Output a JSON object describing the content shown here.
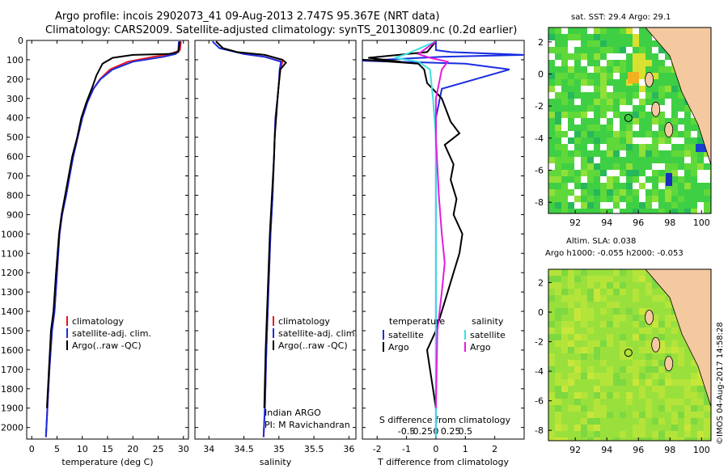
{
  "header": {
    "line1": "Argo profile: incois 2902073_41 09-Aug-2013 2.747S 95.367E (NRT data)",
    "line2": "Climatology: CARS2009. Satellite-adjusted climatology: synTS_20130809.nc (0.2d earlier)"
  },
  "credits": {
    "agency": "Indian ARGO",
    "pi": "PI: M Ravichandran",
    "stamp": "©IMOS 04-Aug-2017 14:58:28"
  },
  "colors": {
    "climatology": "#e8141e",
    "satellite": "#1a2de0",
    "argo": "#000000",
    "argo_salinity": "#e31ce0",
    "satellite_salinity": "#3ee0e0",
    "land": "#f5c9a0",
    "sst_map": "#33cc44",
    "sla_map": "#9ae03c"
  },
  "chart_data": [
    {
      "type": "line",
      "panel": "temperature",
      "xlabel": "temperature (deg C)",
      "xlim": [
        -1,
        31
      ],
      "xticks": [
        0,
        5,
        10,
        15,
        20,
        25,
        30
      ],
      "ylim": [
        2060,
        0
      ],
      "yticks": [
        0,
        100,
        200,
        300,
        400,
        500,
        600,
        700,
        800,
        900,
        1000,
        1100,
        1200,
        1300,
        1400,
        1500,
        1600,
        1700,
        1800,
        1900,
        2000
      ],
      "legend": [
        "climatology",
        "satellite-adj. clim.",
        "Argo(..raw -QC)"
      ],
      "series": [
        {
          "name": "climatology",
          "color_key": "climatology",
          "points": [
            [
              29.5,
              5
            ],
            [
              29.3,
              50
            ],
            [
              27.5,
              70
            ],
            [
              24,
              85
            ],
            [
              19,
              110
            ],
            [
              15.5,
              150
            ],
            [
              13.5,
              200
            ],
            [
              12.2,
              250
            ],
            [
              11,
              320
            ],
            [
              10,
              400
            ],
            [
              9.1,
              500
            ],
            [
              8.2,
              600
            ],
            [
              7.5,
              700
            ],
            [
              6.8,
              800
            ],
            [
              6,
              900
            ],
            [
              5.5,
              1000
            ],
            [
              5,
              1200
            ],
            [
              4.5,
              1400
            ],
            [
              4,
              1500
            ],
            [
              3.5,
              1700
            ],
            [
              3.1,
              1900
            ],
            [
              2.8,
              2050
            ]
          ]
        },
        {
          "name": "satellite-adj. clim.",
          "color_key": "satellite",
          "points": [
            [
              29.1,
              5
            ],
            [
              29,
              50
            ],
            [
              28.5,
              70
            ],
            [
              26,
              85
            ],
            [
              20,
              110
            ],
            [
              16,
              150
            ],
            [
              13.6,
              200
            ],
            [
              12.2,
              250
            ],
            [
              11,
              320
            ],
            [
              10,
              400
            ],
            [
              9.1,
              500
            ],
            [
              8.2,
              600
            ],
            [
              7.5,
              700
            ],
            [
              6.8,
              800
            ],
            [
              6,
              900
            ],
            [
              5.5,
              1000
            ],
            [
              5,
              1200
            ],
            [
              4.5,
              1400
            ],
            [
              4,
              1500
            ],
            [
              3.5,
              1700
            ],
            [
              3.1,
              1900
            ],
            [
              2.8,
              2050
            ]
          ]
        },
        {
          "name": "Argo(..raw -QC)",
          "color_key": "argo",
          "points": [
            [
              29.3,
              5
            ],
            [
              29,
              60
            ],
            [
              27,
              70
            ],
            [
              20,
              75
            ],
            [
              16,
              90
            ],
            [
              14,
              120
            ],
            [
              12.8,
              180
            ],
            [
              12,
              240
            ],
            [
              10.8,
              320
            ],
            [
              9.8,
              400
            ],
            [
              9,
              500
            ],
            [
              8,
              600
            ],
            [
              7.3,
              700
            ],
            [
              6.6,
              800
            ],
            [
              5.9,
              900
            ],
            [
              5.4,
              1000
            ],
            [
              4.8,
              1200
            ],
            [
              4.3,
              1400
            ],
            [
              3.8,
              1500
            ],
            [
              3.4,
              1700
            ],
            [
              3,
              1900
            ]
          ]
        }
      ]
    },
    {
      "type": "line",
      "panel": "salinity",
      "xlabel": "salinity",
      "xlim": [
        33.8,
        36.1
      ],
      "xticks": [
        34,
        34.5,
        35,
        35.5,
        36
      ],
      "ylim": [
        2060,
        0
      ],
      "legend": [
        "climatology",
        "satellite-adj. clim.",
        "Argo(..raw -QC)"
      ],
      "series": [
        {
          "name": "climatology",
          "color_key": "climatology",
          "points": [
            [
              34.1,
              5
            ],
            [
              34.2,
              40
            ],
            [
              34.5,
              70
            ],
            [
              34.8,
              85
            ],
            [
              35.05,
              110
            ],
            [
              35.02,
              150
            ],
            [
              35,
              220
            ],
            [
              34.98,
              300
            ],
            [
              34.95,
              400
            ],
            [
              34.93,
              600
            ],
            [
              34.91,
              800
            ],
            [
              34.88,
              1000
            ],
            [
              34.85,
              1300
            ],
            [
              34.82,
              1600
            ],
            [
              34.8,
              1900
            ],
            [
              34.78,
              2050
            ]
          ]
        },
        {
          "name": "satellite-adj. clim.",
          "color_key": "satellite",
          "points": [
            [
              34.05,
              5
            ],
            [
              34.15,
              40
            ],
            [
              34.5,
              70
            ],
            [
              34.8,
              85
            ],
            [
              35.03,
              110
            ],
            [
              35.01,
              150
            ],
            [
              35,
              220
            ],
            [
              34.98,
              300
            ],
            [
              34.95,
              400
            ],
            [
              34.93,
              600
            ],
            [
              34.91,
              800
            ],
            [
              34.88,
              1000
            ],
            [
              34.85,
              1300
            ],
            [
              34.82,
              1600
            ],
            [
              34.8,
              1900
            ],
            [
              34.78,
              2050
            ]
          ]
        },
        {
          "name": "Argo(..raw -QC)",
          "color_key": "argo",
          "points": [
            [
              34.1,
              5
            ],
            [
              34.2,
              40
            ],
            [
              34.4,
              60
            ],
            [
              34.8,
              75
            ],
            [
              35.05,
              100
            ],
            [
              35.1,
              115
            ],
            [
              35.02,
              150
            ],
            [
              35,
              220
            ],
            [
              34.98,
              300
            ],
            [
              34.96,
              400
            ],
            [
              34.94,
              500
            ],
            [
              34.93,
              600
            ],
            [
              34.9,
              800
            ],
            [
              34.87,
              1000
            ],
            [
              34.84,
              1300
            ],
            [
              34.81,
              1600
            ],
            [
              34.79,
              1900
            ]
          ]
        }
      ]
    },
    {
      "type": "line",
      "panel": "difference",
      "xlabel": "T difference from climatology",
      "x2label": "S difference from climatology",
      "xlim": [
        -2.5,
        3
      ],
      "xticks": [
        -2,
        -1,
        0,
        1,
        2
      ],
      "x2ticks": [
        "-0.5",
        "-0.25",
        "0",
        "0.25",
        "0.5"
      ],
      "ylim": [
        2060,
        0
      ],
      "legend_titles": [
        "temperature",
        "salinity"
      ],
      "legend": [
        "satellite",
        "Argo",
        "satellite",
        "Argo"
      ],
      "series": [
        {
          "name": "satellite",
          "group": "temperature",
          "color_key": "satellite",
          "points": [
            [
              0,
              5
            ],
            [
              0,
              50
            ],
            [
              0.5,
              60
            ],
            [
              3,
              75
            ],
            [
              0.2,
              85
            ],
            [
              -2.5,
              105
            ],
            [
              1,
              120
            ],
            [
              2.5,
              150
            ],
            [
              0.2,
              250
            ],
            [
              0,
              400
            ],
            [
              0,
              800
            ],
            [
              0,
              1200
            ],
            [
              0,
              1600
            ],
            [
              0,
              2050
            ]
          ]
        },
        {
          "name": "Argo",
          "group": "temperature",
          "color_key": "argo",
          "points": [
            [
              0,
              5
            ],
            [
              -0.3,
              60
            ],
            [
              -2.3,
              90
            ],
            [
              -1.2,
              110
            ],
            [
              -2.5,
              100
            ],
            [
              -0.6,
              120
            ],
            [
              -0.4,
              150
            ],
            [
              -0.3,
              220
            ],
            [
              0.2,
              300
            ],
            [
              0.5,
              420
            ],
            [
              0.8,
              480
            ],
            [
              0.3,
              540
            ],
            [
              0.6,
              640
            ],
            [
              0.5,
              720
            ],
            [
              0.7,
              820
            ],
            [
              0.6,
              900
            ],
            [
              0.9,
              1000
            ],
            [
              0.8,
              1100
            ],
            [
              0.6,
              1200
            ],
            [
              0.4,
              1300
            ],
            [
              0.2,
              1400
            ],
            [
              0,
              1500
            ],
            [
              -0.3,
              1600
            ],
            [
              -0.2,
              1700
            ],
            [
              -0.1,
              1800
            ],
            [
              0,
              1900
            ]
          ]
        },
        {
          "name": "satellite",
          "group": "salinity",
          "color_key": "satellite_salinity",
          "points": [
            [
              0,
              5
            ],
            [
              -1,
              70
            ],
            [
              -1.4,
              90
            ],
            [
              -0.6,
              110
            ],
            [
              -0.2,
              150
            ],
            [
              -0.1,
              300
            ],
            [
              0,
              500
            ],
            [
              0,
              900
            ],
            [
              0,
              1300
            ],
            [
              0,
              1700
            ],
            [
              0,
              2050
            ]
          ]
        },
        {
          "name": "Argo",
          "group": "salinity",
          "color_key": "argo_salinity",
          "points": [
            [
              0,
              5
            ],
            [
              -0.6,
              70
            ],
            [
              -0.2,
              90
            ],
            [
              0.4,
              110
            ],
            [
              0.2,
              150
            ],
            [
              0,
              300
            ],
            [
              0,
              500
            ],
            [
              0.1,
              800
            ],
            [
              0.2,
              1000
            ],
            [
              0.3,
              1150
            ],
            [
              0.2,
              1300
            ],
            [
              0.05,
              1500
            ],
            [
              0,
              1900
            ]
          ]
        }
      ]
    },
    {
      "type": "heatmap",
      "panel": "sst-map",
      "title": "sat. SST: 29.4  Argo: 29.1",
      "xlim": [
        90.3,
        100.6
      ],
      "ylim": [
        -8.7,
        2.9
      ],
      "xticks": [
        92,
        94,
        96,
        98,
        100
      ],
      "yticks": [
        2,
        0,
        -2,
        -4,
        -6,
        -8
      ],
      "marker": [
        95.367,
        -2.747
      ]
    },
    {
      "type": "heatmap",
      "panel": "sla-map",
      "title": "Altim. SLA: 0.038",
      "subtitle": "Argo h1000: -0.055 h2000: -0.053",
      "xlim": [
        90.3,
        100.6
      ],
      "ylim": [
        -8.7,
        2.9
      ],
      "xticks": [
        92,
        94,
        96,
        98,
        100
      ],
      "yticks": [
        2,
        0,
        -2,
        -4,
        -6,
        -8
      ],
      "marker": [
        95.367,
        -2.747
      ]
    }
  ]
}
